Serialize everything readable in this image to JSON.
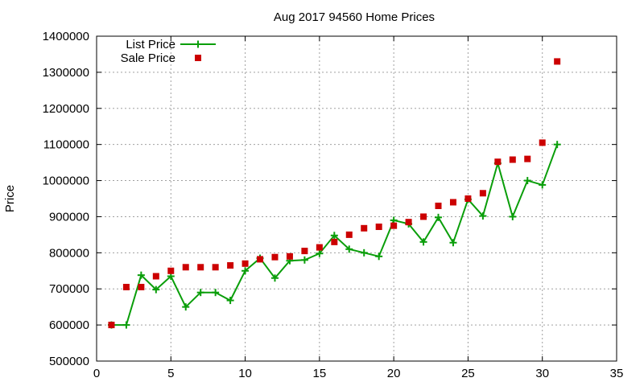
{
  "chart_data": {
    "type": "line",
    "title": "Aug 2017 94560 Home Prices",
    "xlabel": "",
    "ylabel": "Price",
    "xlim": [
      0,
      35
    ],
    "ylim": [
      500000,
      1400000
    ],
    "x_ticks": [
      0,
      5,
      10,
      15,
      20,
      25,
      30,
      35
    ],
    "y_ticks": [
      500000,
      600000,
      700000,
      800000,
      900000,
      1000000,
      1100000,
      1200000,
      1300000,
      1400000
    ],
    "grid": true,
    "legend_position": "top-left",
    "series": [
      {
        "name": "List Price",
        "style": "line-with-plus-markers",
        "color": "#0a9e0a",
        "x": [
          1,
          2,
          3,
          4,
          5,
          6,
          7,
          8,
          9,
          10,
          11,
          12,
          13,
          14,
          15,
          16,
          17,
          18,
          19,
          20,
          21,
          22,
          23,
          24,
          25,
          26,
          27,
          28,
          29,
          30,
          31
        ],
        "y": [
          600000,
          600000,
          738000,
          698000,
          735000,
          650000,
          690000,
          690000,
          668000,
          750000,
          785000,
          730000,
          778000,
          780000,
          798000,
          848000,
          810000,
          800000,
          790000,
          890000,
          880000,
          830000,
          898000,
          828000,
          948000,
          902000,
          1048000,
          900000,
          1000000,
          988000,
          1100000
        ]
      },
      {
        "name": "Sale Price",
        "style": "square-markers",
        "color": "#cc0000",
        "x": [
          1,
          2,
          3,
          4,
          5,
          6,
          7,
          8,
          9,
          10,
          11,
          12,
          13,
          14,
          15,
          16,
          17,
          18,
          19,
          20,
          21,
          22,
          23,
          24,
          25,
          26,
          27,
          28,
          29,
          30,
          31
        ],
        "y": [
          600000,
          705000,
          705000,
          735000,
          750000,
          760000,
          760000,
          760000,
          765000,
          770000,
          782000,
          788000,
          790000,
          805000,
          815000,
          830000,
          850000,
          868000,
          872000,
          875000,
          885000,
          900000,
          930000,
          940000,
          950000,
          965000,
          1052000,
          1058000,
          1060000,
          1105000,
          1330000
        ]
      }
    ]
  }
}
